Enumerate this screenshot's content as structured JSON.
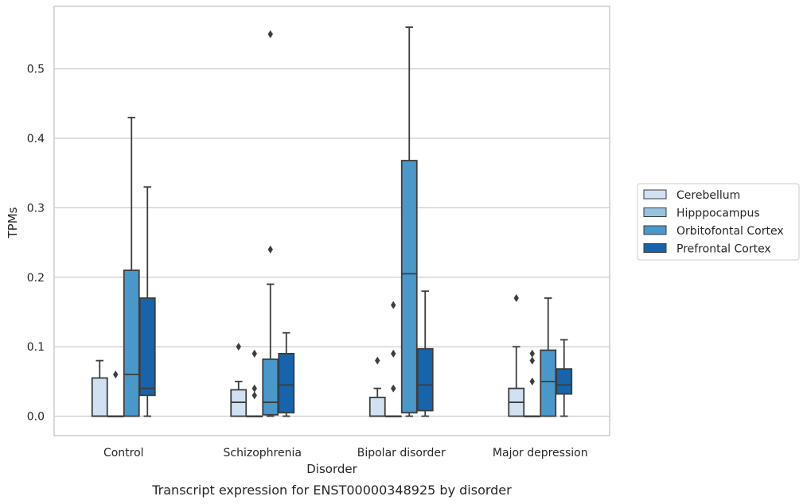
{
  "chart_data": {
    "type": "boxplot",
    "caption": "Transcript expression for ENST00000348925 by disorder",
    "xlabel": "Disorder",
    "ylabel": "TPMs",
    "ylim": [
      -0.028,
      0.59
    ],
    "yticks": [
      0.0,
      0.1,
      0.2,
      0.3,
      0.4,
      0.5
    ],
    "ytick_labels": [
      "0.0",
      "0.1",
      "0.2",
      "0.3",
      "0.4",
      "0.5"
    ],
    "grid": "horizontal",
    "legend_position": "right",
    "categories": [
      "Control",
      "Schizophrenia",
      "Bipolar disorder",
      "Major depression"
    ],
    "series": [
      {
        "name": "Cerebellum",
        "color": "#d0e1f2",
        "boxes": [
          {
            "q1": 0.0,
            "median": 0.0,
            "q3": 0.055,
            "whislo": 0.0,
            "whishi": 0.08,
            "fliers": []
          },
          {
            "q1": 0.0,
            "median": 0.02,
            "q3": 0.038,
            "whislo": 0.0,
            "whishi": 0.05,
            "fliers": [
              0.1
            ]
          },
          {
            "q1": 0.0,
            "median": 0.0,
            "q3": 0.027,
            "whislo": 0.0,
            "whishi": 0.04,
            "fliers": [
              0.08
            ]
          },
          {
            "q1": 0.0,
            "median": 0.02,
            "q3": 0.04,
            "whislo": 0.0,
            "whishi": 0.1,
            "fliers": [
              0.17
            ]
          }
        ]
      },
      {
        "name": "Hipppocampus",
        "color": "#94c4df",
        "boxes": [
          {
            "q1": 0.0,
            "median": 0.0,
            "q3": 0.0,
            "whislo": 0.0,
            "whishi": 0.0,
            "fliers": [
              0.06
            ]
          },
          {
            "q1": 0.0,
            "median": 0.0,
            "q3": 0.0,
            "whislo": 0.0,
            "whishi": 0.0,
            "fliers": [
              0.03,
              0.04,
              0.09
            ]
          },
          {
            "q1": 0.0,
            "median": 0.0,
            "q3": 0.0,
            "whislo": 0.0,
            "whishi": 0.0,
            "fliers": [
              0.04,
              0.09,
              0.16
            ]
          },
          {
            "q1": 0.0,
            "median": 0.0,
            "q3": 0.0,
            "whislo": 0.0,
            "whishi": 0.0,
            "fliers": [
              0.05,
              0.08,
              0.09
            ]
          }
        ]
      },
      {
        "name": "Orbitofontal Cortex",
        "color": "#4a98c9",
        "boxes": [
          {
            "q1": 0.0,
            "median": 0.06,
            "q3": 0.21,
            "whislo": 0.0,
            "whishi": 0.43,
            "fliers": []
          },
          {
            "q1": 0.002,
            "median": 0.02,
            "q3": 0.082,
            "whislo": 0.0,
            "whishi": 0.19,
            "fliers": [
              0.24,
              0.55
            ]
          },
          {
            "q1": 0.005,
            "median": 0.205,
            "q3": 0.368,
            "whislo": 0.0,
            "whishi": 0.56,
            "fliers": []
          },
          {
            "q1": 0.0,
            "median": 0.05,
            "q3": 0.095,
            "whislo": 0.0,
            "whishi": 0.17,
            "fliers": []
          }
        ]
      },
      {
        "name": "Prefrontal Cortex",
        "color": "#1764ab",
        "boxes": [
          {
            "q1": 0.03,
            "median": 0.04,
            "q3": 0.17,
            "whislo": 0.0,
            "whishi": 0.33,
            "fliers": []
          },
          {
            "q1": 0.005,
            "median": 0.045,
            "q3": 0.09,
            "whislo": 0.0,
            "whishi": 0.12,
            "fliers": []
          },
          {
            "q1": 0.008,
            "median": 0.045,
            "q3": 0.097,
            "whislo": 0.0,
            "whishi": 0.18,
            "fliers": []
          },
          {
            "q1": 0.032,
            "median": 0.045,
            "q3": 0.068,
            "whislo": 0.0,
            "whishi": 0.11,
            "fliers": []
          }
        ]
      }
    ]
  }
}
